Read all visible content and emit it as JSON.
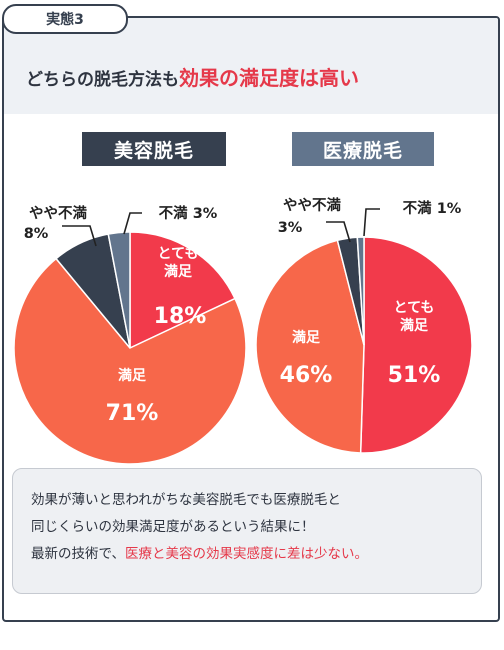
{
  "tag": "実態3",
  "headline": {
    "plain": "どちらの脱毛方法も",
    "highlight": "効果の満足度は高い"
  },
  "note": {
    "line1": "効果が薄いと思われがちな美容脱毛でも医療脱毛と",
    "line2": "同じくらいの効果満足度があるという結果に！",
    "line3_plain": "最新の技術で、",
    "line3_highlight": "医療と美容の効果実感度に差は少ない。"
  },
  "colors": {
    "dark": "#36404f",
    "slate": "#62758d",
    "red": "#f23a4b",
    "orange": "#f7674a",
    "text_red": "#e5394a"
  },
  "chart_data": [
    {
      "type": "pie",
      "title": "美容脱毛",
      "slices": [
        {
          "label": "とても満足",
          "value": 18,
          "display": "18%"
        },
        {
          "label": "満足",
          "value": 71,
          "display": "71%"
        },
        {
          "label": "やや不満",
          "value": 8,
          "display": "8%"
        },
        {
          "label": "不満",
          "value": 3,
          "display": "3%"
        }
      ]
    },
    {
      "type": "pie",
      "title": "医療脱毛",
      "slices": [
        {
          "label": "とても満足",
          "value": 51,
          "display": "51%"
        },
        {
          "label": "満足",
          "value": 46,
          "display": "46%"
        },
        {
          "label": "やや不満",
          "value": 3,
          "display": "3%"
        },
        {
          "label": "不満",
          "value": 1,
          "display": "1%"
        }
      ]
    }
  ]
}
